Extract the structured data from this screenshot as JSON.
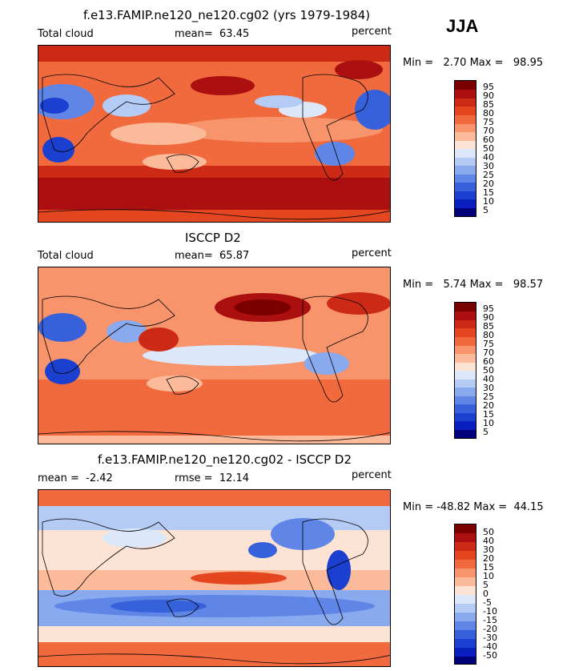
{
  "season": "JJA",
  "panels": [
    {
      "title": "f.e13.FAMIP.ne120_ne120.cg02 (yrs 1979-1984)",
      "left_label": "Total cloud",
      "center_label": "mean=",
      "center_value": "63.45",
      "right_label": "percent",
      "min_label": "Min =",
      "min_value": "2.70",
      "max_label": "Max =",
      "max_value": "98.95",
      "colorbar_labels": [
        "95",
        "90",
        "85",
        "80",
        "75",
        "70",
        "60",
        "50",
        "40",
        "30",
        "25",
        "20",
        "15",
        "10",
        "5"
      ]
    },
    {
      "title": "ISCCP D2",
      "left_label": "Total cloud",
      "center_label": "mean=",
      "center_value": "65.87",
      "right_label": "percent",
      "min_label": "Min =",
      "min_value": "5.74",
      "max_label": "Max =",
      "max_value": "98.57",
      "colorbar_labels": [
        "95",
        "90",
        "85",
        "80",
        "75",
        "70",
        "60",
        "50",
        "40",
        "30",
        "25",
        "20",
        "15",
        "10",
        "5"
      ]
    },
    {
      "title": "f.e13.FAMIP.ne120_ne120.cg02 - ISCCP D2",
      "left_label": "mean =",
      "left_value": "-2.42",
      "center_label": "rmse =",
      "center_value": "12.14",
      "right_label": "percent",
      "min_label": "Min =",
      "min_value": "-48.82",
      "max_label": "Max =",
      "max_value": "44.15",
      "colorbar_labels": [
        "50",
        "40",
        "30",
        "20",
        "15",
        "10",
        "5",
        "0",
        "-5",
        "-10",
        "-15",
        "-20",
        "-30",
        "-40",
        "-50"
      ]
    }
  ],
  "colors": {
    "palette": [
      "#7a0000",
      "#ab0f0f",
      "#cc2a14",
      "#e4471f",
      "#f06a3e",
      "#f7946b",
      "#fbbb9a",
      "#fde3d4",
      "#dce8fa",
      "#b3cbf5",
      "#8aaaf0",
      "#5f86e6",
      "#3761db",
      "#1b3fcf",
      "#0a1fbf",
      "#00007a"
    ],
    "neutral": "#fbeee3",
    "land_line": "#000000"
  }
}
